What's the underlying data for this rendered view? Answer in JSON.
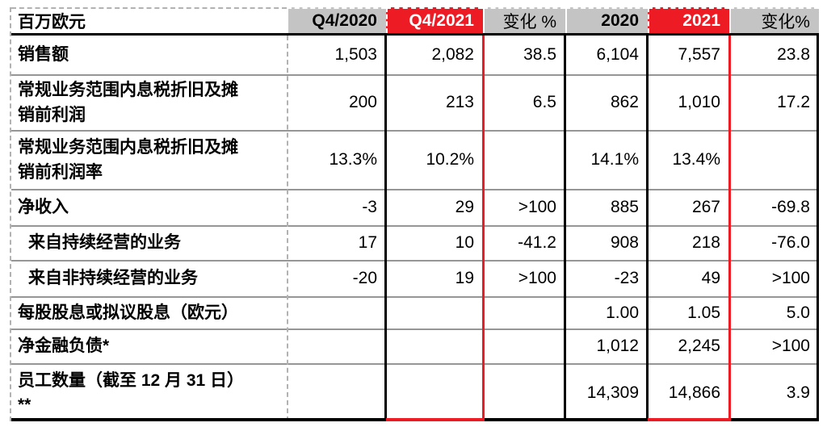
{
  "table": {
    "unit_label": "百万欧元",
    "columns": [
      {
        "key": "q4-2020",
        "label": "Q4/2020",
        "style": "gray-bold"
      },
      {
        "key": "q4-2021",
        "label": "Q4/2021",
        "style": "red"
      },
      {
        "key": "change-pct-quarter",
        "label": "变化 %",
        "style": "gray"
      },
      {
        "key": "fy-2020",
        "label": "2020",
        "style": "gray-bold"
      },
      {
        "key": "fy-2021",
        "label": "2021",
        "style": "red"
      },
      {
        "key": "change-pct-year",
        "label": "变化%",
        "style": "gray"
      }
    ],
    "rows": [
      {
        "label": "销售额",
        "indent": false,
        "values": [
          "1,503",
          "2,082",
          "38.5",
          "6,104",
          "7,557",
          "23.8"
        ]
      },
      {
        "label": "常规业务范围内息税折旧及摊销前利润",
        "indent": false,
        "values": [
          "200",
          "213",
          "6.5",
          "862",
          "1,010",
          "17.2"
        ]
      },
      {
        "label": "常规业务范围内息税折旧及摊销前利润率",
        "indent": false,
        "values": [
          "13.3%",
          "10.2%",
          "",
          "14.1%",
          "13.4%",
          ""
        ]
      },
      {
        "label": "净收入",
        "indent": false,
        "values": [
          "-3",
          "29",
          ">100",
          "885",
          "267",
          "-69.8"
        ]
      },
      {
        "label": "来自持续经营的业务",
        "indent": true,
        "values": [
          "17",
          "10",
          "-41.2",
          "908",
          "218",
          "-76.0"
        ]
      },
      {
        "label": "来自非持续经营的业务",
        "indent": true,
        "values": [
          "-20",
          "19",
          ">100",
          "-23",
          "49",
          ">100"
        ]
      },
      {
        "label": "每股股息或拟议股息（欧元）",
        "indent": false,
        "values": [
          "",
          "",
          "",
          "1.00",
          "1.05",
          "5.0"
        ]
      },
      {
        "label": "净金融负债*",
        "indent": false,
        "values": [
          "",
          "",
          "",
          "1,012",
          "2,245",
          ">100"
        ]
      },
      {
        "label": "员工数量（截至 12 月 31 日）**",
        "indent": false,
        "values": [
          "",
          "",
          "",
          "14,309",
          "14,866",
          "3.9"
        ]
      }
    ],
    "colors": {
      "highlight_red": "#ec1b24",
      "header_gray": "#c4c4c4",
      "row_line_gray": "#969696",
      "dashed_border_gray": "#b2b2b2",
      "rule_black": "#000000"
    }
  }
}
